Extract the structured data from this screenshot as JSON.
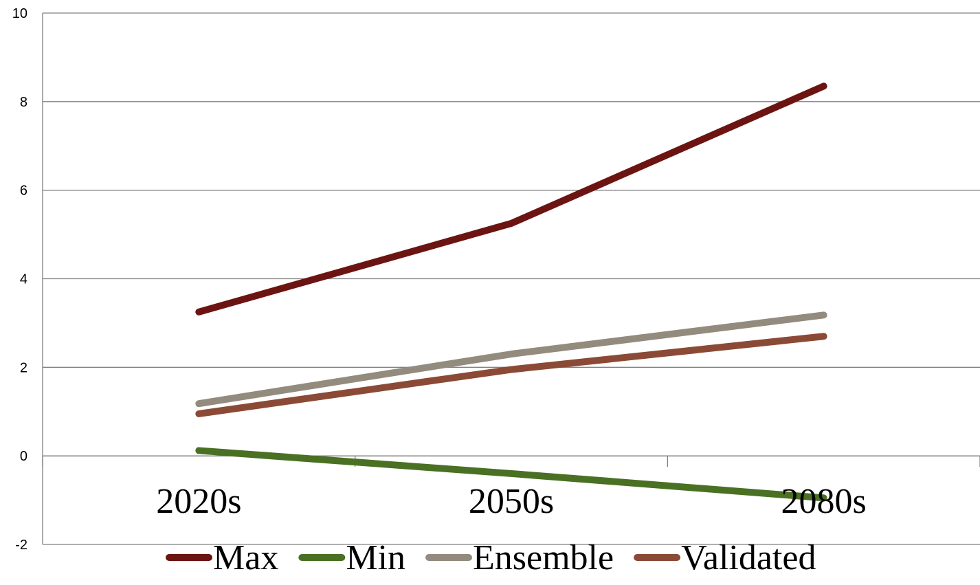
{
  "chart_data": {
    "type": "line",
    "title": "",
    "xlabel": "",
    "ylabel": "",
    "categories": [
      "2020s",
      "2050s",
      "2080s"
    ],
    "ylim": [
      -2,
      10
    ],
    "y_ticks": [
      "-2",
      "0",
      "2",
      "4",
      "6",
      "8",
      "10"
    ],
    "grid": true,
    "legend_position": "bottom",
    "series": [
      {
        "name": "Max",
        "color": "#6B1412",
        "values": [
          3.25,
          5.25,
          8.35
        ]
      },
      {
        "name": "Min",
        "color": "#4A7023",
        "values": [
          0.12,
          -0.4,
          -0.95
        ]
      },
      {
        "name": "Ensemble",
        "color": "#938B7E",
        "values": [
          1.18,
          2.3,
          3.18
        ]
      },
      {
        "name": "Validated",
        "color": "#8B4A35",
        "values": [
          0.95,
          1.95,
          2.7
        ]
      }
    ]
  }
}
